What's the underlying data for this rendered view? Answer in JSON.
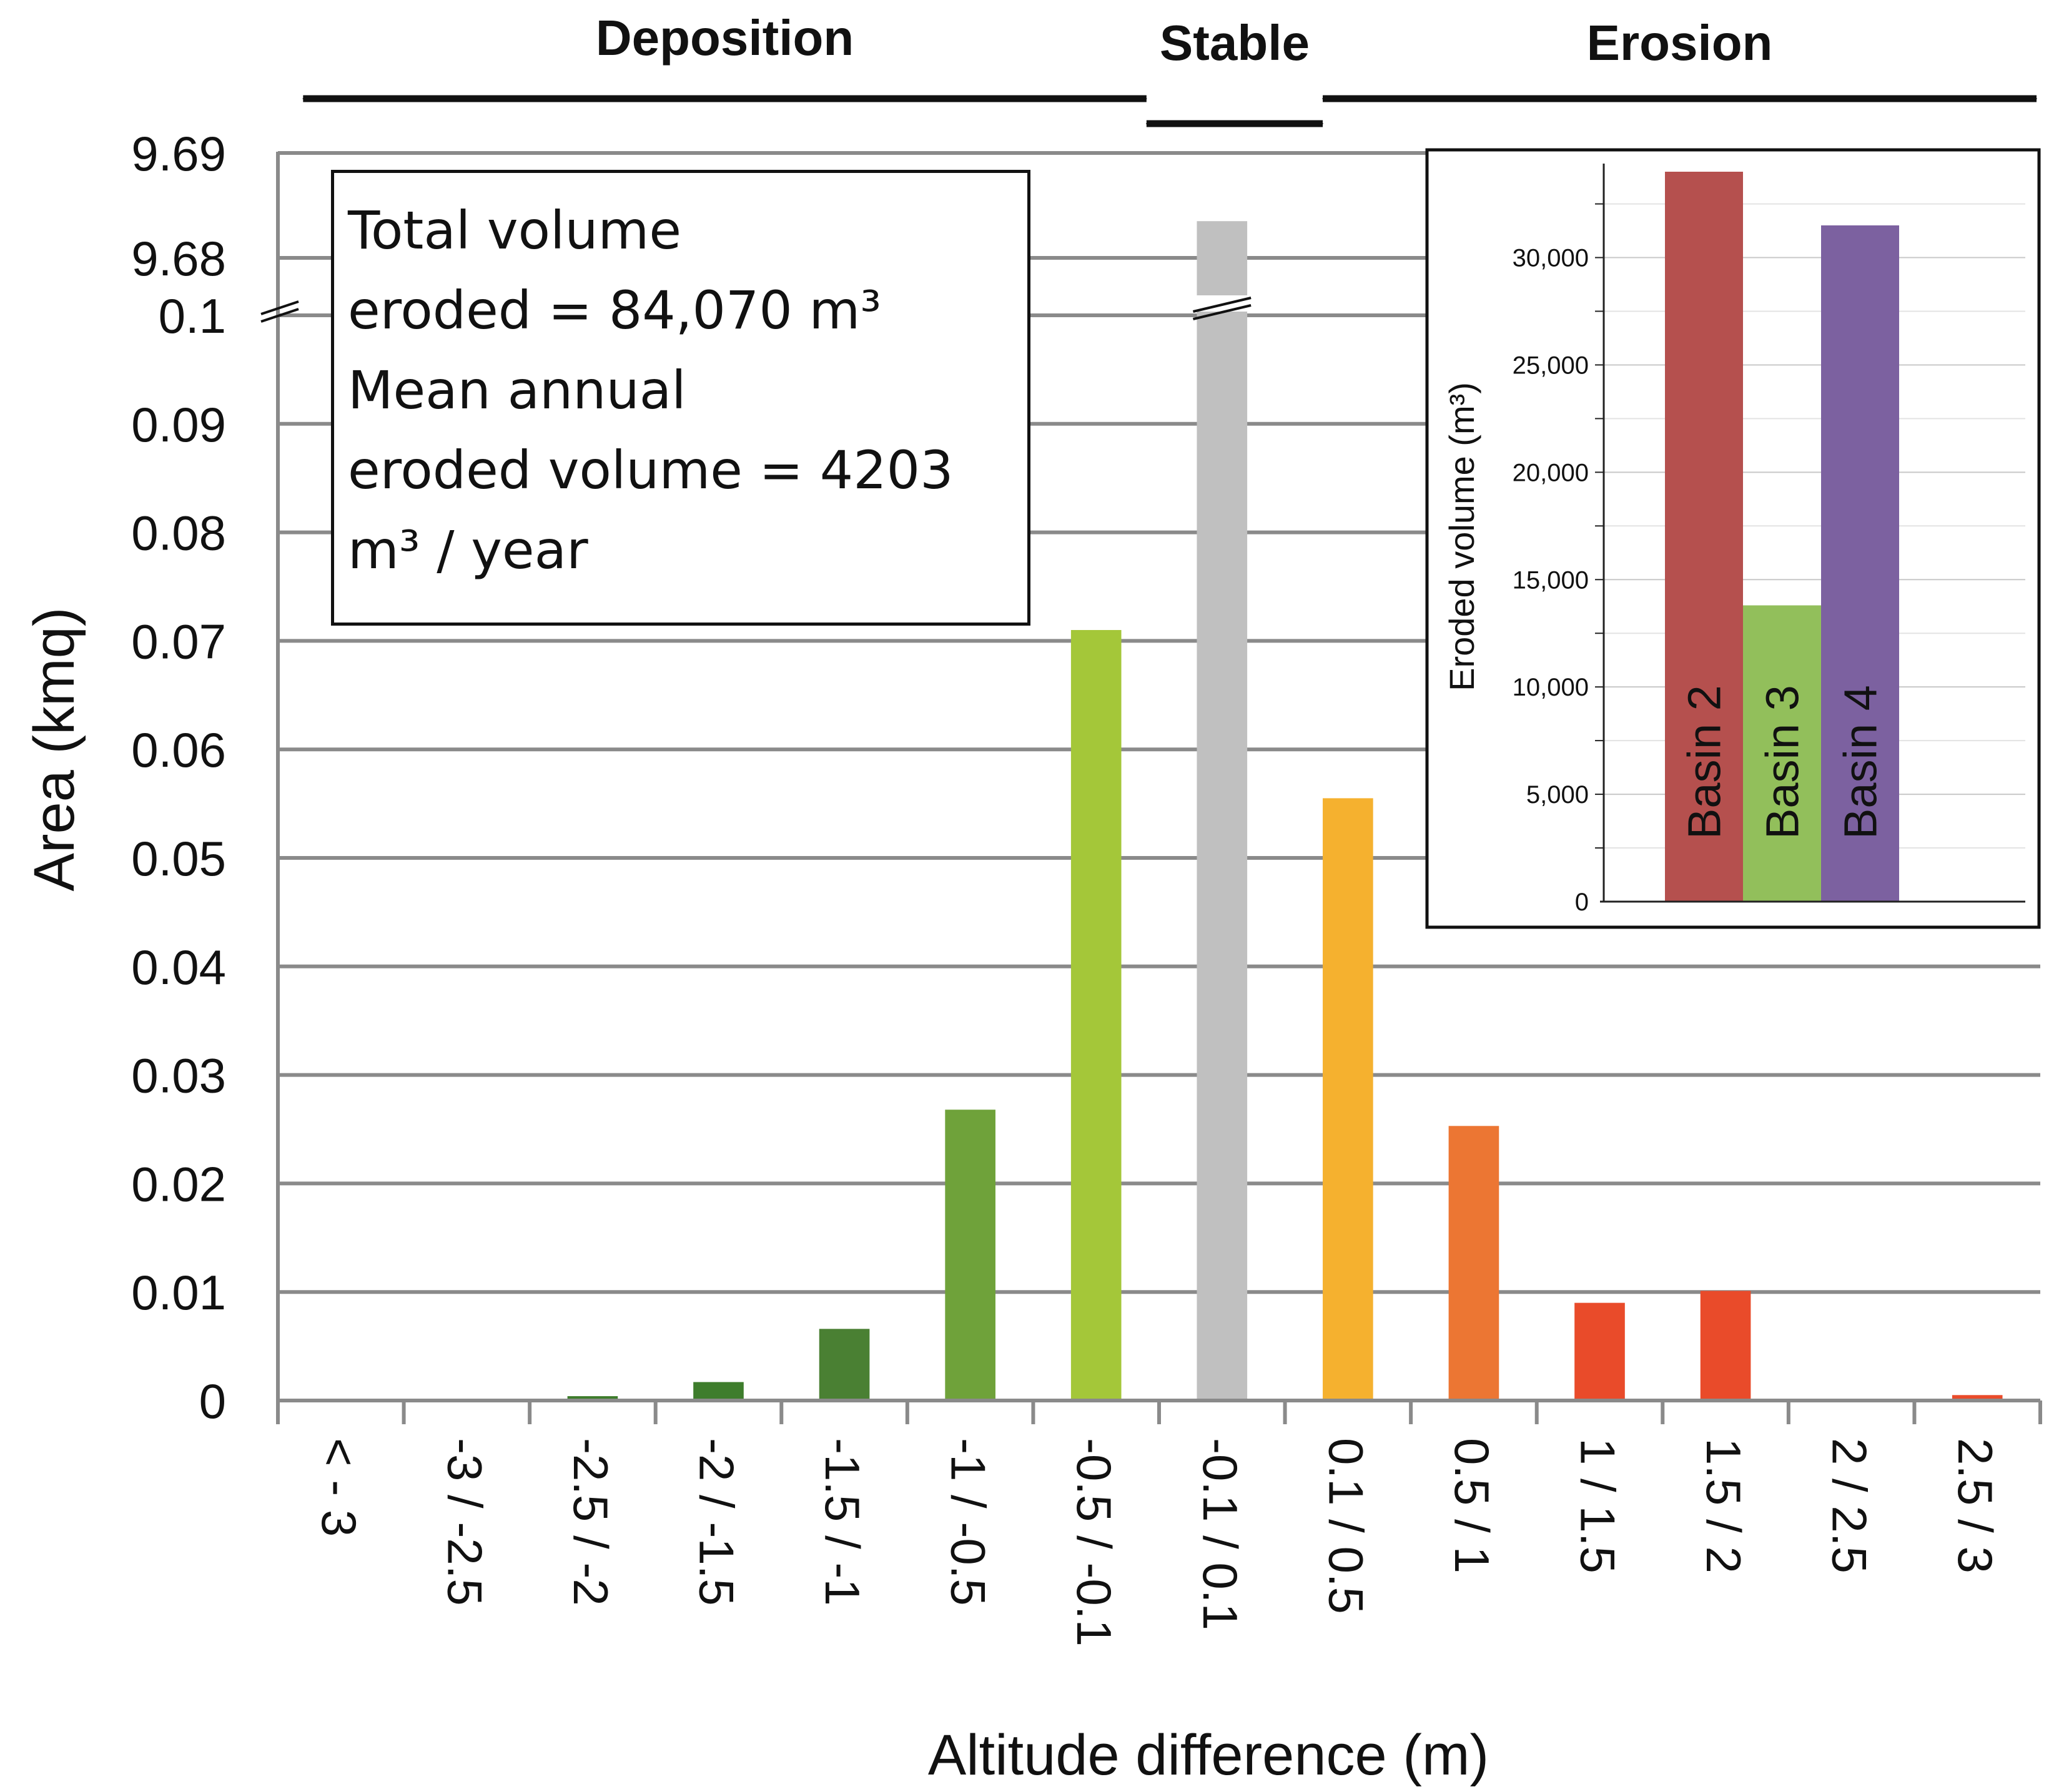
{
  "chart_data": {
    "type": "bar",
    "xlabel": "Altitude difference (m)",
    "ylabel": "Area (kmq)",
    "categories": [
      "< - 3",
      "-3 / -2.5",
      "-2.5 / -2",
      "-2 / -1.5",
      "-1.5 / -1",
      "-1 / -0.5",
      "-0.5 / -0.1",
      "-0.1 / 0.1",
      "0.1 / 0.5",
      "0.5 / 1",
      "1 / 1.5",
      "1.5 / 2",
      "2 / 2.5",
      "2.5 / 3"
    ],
    "values": [
      0,
      0,
      0.0004,
      0.0017,
      0.0066,
      0.0268,
      0.071,
      9.6835,
      0.0555,
      0.0253,
      0.009,
      0.0101,
      0,
      0.0005
    ],
    "bar_colors": [
      "#1e5e20",
      "#1e5e20",
      "#3e7d2c",
      "#3e7d2c",
      "#4a8033",
      "#6fa23a",
      "#a4c739",
      "#c0c0c0",
      "#f5b12f",
      "#ec7633",
      "#e94b2a",
      "#e94b2a",
      "#e94b2a",
      "#e94b2a"
    ],
    "y_axis": {
      "lower_range": [
        0,
        0.1
      ],
      "upper_range": [
        9.68,
        9.69
      ],
      "lower_ticks": [
        "0",
        "0.01",
        "0.02",
        "0.03",
        "0.04",
        "0.05",
        "0.06",
        "0.07",
        "0.08",
        "0.09",
        "0.1"
      ],
      "upper_ticks": [
        "9.68",
        "9.69"
      ],
      "axis_break": true
    },
    "grid": true,
    "zones": [
      {
        "label": "Deposition",
        "from": "< - 3",
        "to": "-0.5 / -0.1"
      },
      {
        "label": "Stable",
        "from": "-0.1 / 0.1",
        "to": "-0.1 / 0.1"
      },
      {
        "label": "Erosion",
        "from": "0.1 / 0.5",
        "to": "2.5 / 3"
      }
    ],
    "inset": {
      "type": "bar",
      "ylabel": "Eroded volume (m³)",
      "ylim": [
        0,
        34000
      ],
      "yticks": [
        0,
        5000,
        10000,
        15000,
        20000,
        25000,
        30000
      ],
      "ytick_labels": [
        "0",
        "5,000",
        "10,000",
        "15,000",
        "20,000",
        "25,000",
        "30,000"
      ],
      "categories": [
        "Basin 2",
        "Basin 3",
        "Basin 4"
      ],
      "values": [
        34000,
        13800,
        31500
      ],
      "colors": [
        "#b5504e",
        "#92bf5b",
        "#7c61a0"
      ]
    }
  },
  "info_box": {
    "line1": "Total volume",
    "line2": "eroded = 84,070 m³",
    "line3": "Mean annual",
    "line4": "eroded volume = 4203",
    "line5": "m³ / year"
  }
}
